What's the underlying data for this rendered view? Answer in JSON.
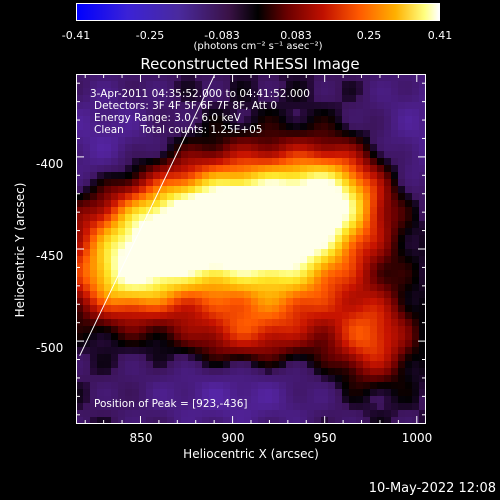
{
  "colorbar": {
    "ticks": [
      "-0.41",
      "-0.25",
      "-0.083",
      "0.083",
      "0.25",
      "0.41"
    ],
    "units": "(photons cm⁻² s⁻¹ asec⁻²)",
    "min": -0.41,
    "max": 0.41
  },
  "chart_data": {
    "type": "heatmap",
    "title": "Reconstructed RHESSI Image",
    "xlabel": "Heliocentric X (arcsec)",
    "ylabel": "Heliocentric Y (arcsec)",
    "xlim": [
      815,
      1005
    ],
    "ylim": [
      -545,
      -355
    ],
    "x_ticks": [
      "850",
      "900",
      "950",
      "1000"
    ],
    "y_ticks": [
      "-400",
      "-450",
      "-500"
    ],
    "peak": [
      923,
      -436
    ],
    "limb_line": [
      [
        817,
        -508
      ],
      [
        890,
        -356
      ]
    ],
    "colormap": "RHESSI red/blue: blue negative, black zero, red-orange-yellow-white positive",
    "annotations": {
      "time": "3-Apr-2011 04:35:52.000 to 04:41:52.000",
      "detectors": "Detectors: 3F 4F 5F 6F 7F 8F, Att 0",
      "energy": "Energy Range: 3.0 - 6.0 keV",
      "method": "Clean     Total counts: 1.25E+05",
      "peak_position": "Position of Peak = [923,-436]"
    }
  },
  "footer": {
    "date": "10-May-2022 12:08"
  }
}
